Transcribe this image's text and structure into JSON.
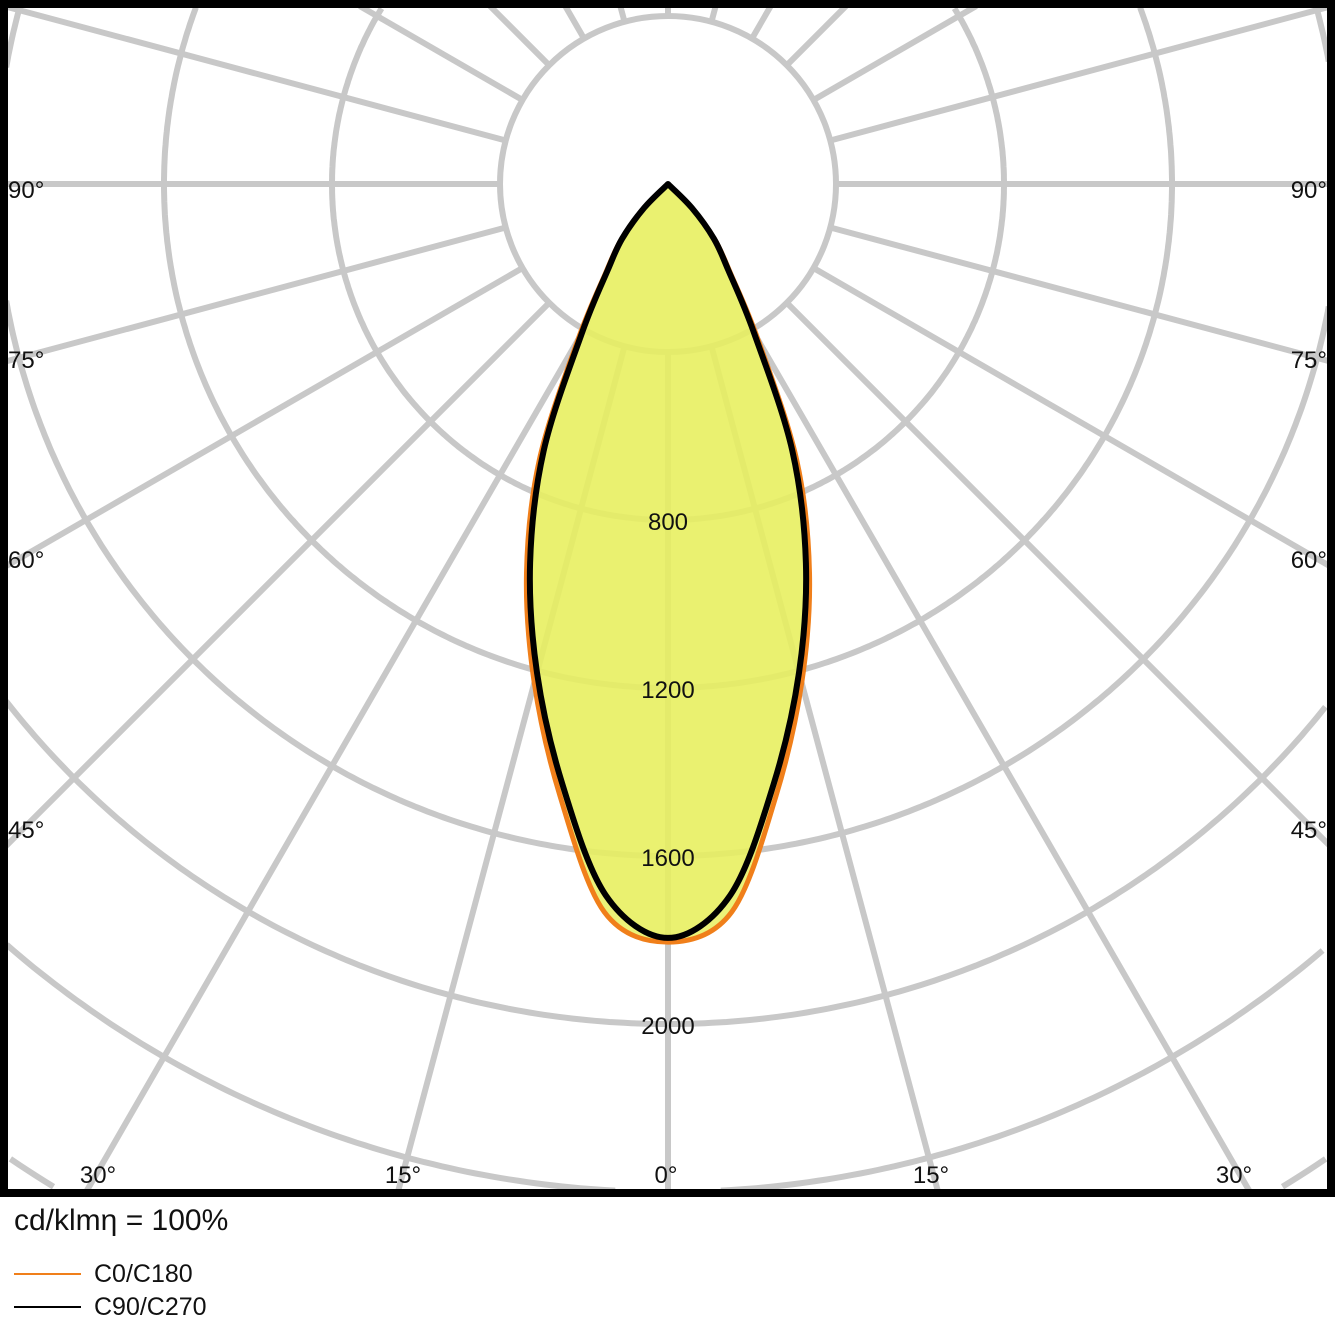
{
  "chart_data": {
    "type": "polar-line",
    "unit_label": "cd/klmη = 100%",
    "radial_ticks": [
      400,
      800,
      1200,
      1600,
      2000,
      2400
    ],
    "radial_tick_labels": [
      "800",
      "1200",
      "1600",
      "2000"
    ],
    "angle_ticks": [
      0,
      15,
      30,
      45,
      60,
      75,
      90
    ],
    "angle_labels": {
      "bottom": [
        "30°",
        "15°",
        "0°",
        "15°",
        "30°"
      ],
      "left": [
        "90°",
        "75°",
        "60°",
        "45°"
      ],
      "right": [
        "90°",
        "75°",
        "60°",
        "45°"
      ]
    },
    "grid": true,
    "legend_position": "bottom-left",
    "fill_color": "#e8f060",
    "gamma": [
      0,
      5,
      10,
      15,
      20,
      25,
      30,
      35,
      40,
      45,
      50
    ],
    "series": [
      {
        "name": "C0/C180",
        "color": "#f07f1a",
        "values": [
          1805,
          1740,
          1480,
          1230,
          985,
          725,
          430,
          260,
          175,
          85,
          0
        ]
      },
      {
        "name": "C90/C270",
        "color": "#000000",
        "values": [
          1795,
          1700,
          1450,
          1205,
          960,
          700,
          410,
          250,
          170,
          80,
          0
        ]
      }
    ]
  }
}
